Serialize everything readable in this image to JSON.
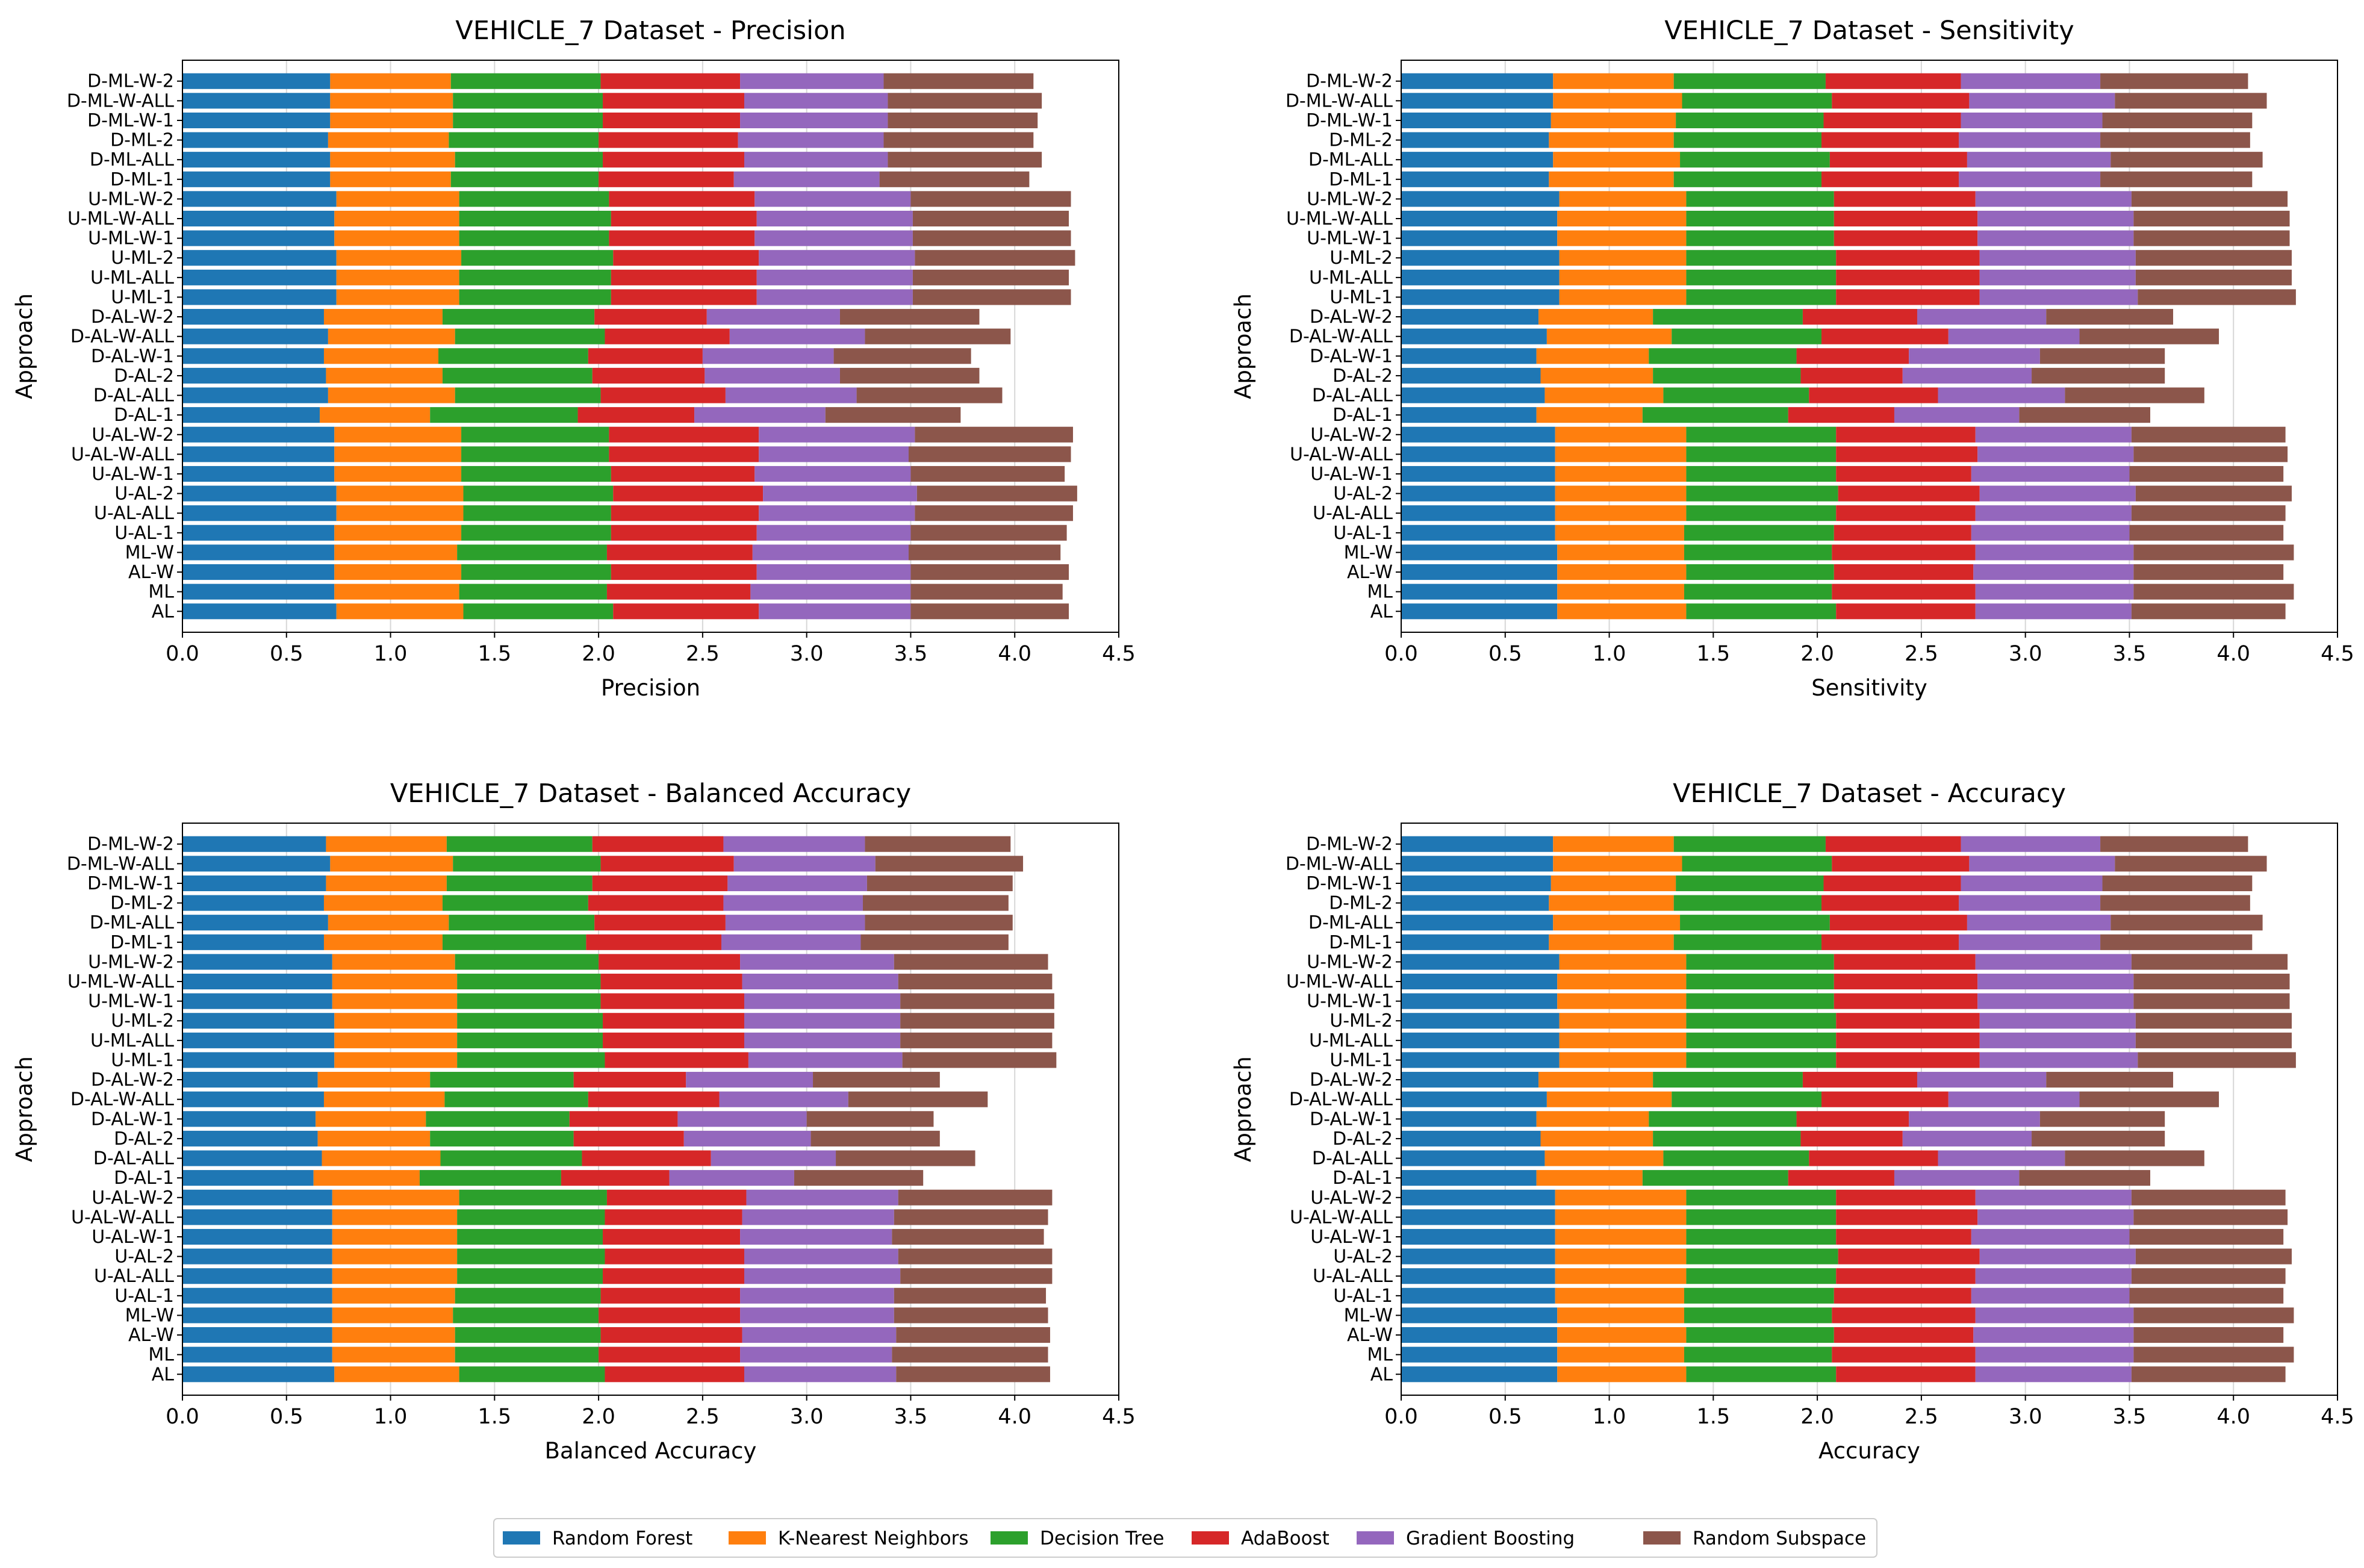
{
  "chart_data": [
    {
      "type": "bar",
      "orientation": "horizontal",
      "stacked": true,
      "title": "VEHICLE_7 Dataset - Precision",
      "xlabel": "Precision",
      "ylabel": "Approach",
      "xlim": [
        0,
        4.5
      ],
      "xticks": [
        "0.0",
        "0.5",
        "1.0",
        "1.5",
        "2.0",
        "2.5",
        "3.0",
        "3.5",
        "4.0",
        "4.5"
      ],
      "grid": "x",
      "categories": [
        "AL",
        "ML",
        "AL-W",
        "ML-W",
        "U-AL-1",
        "U-AL-ALL",
        "U-AL-2",
        "U-AL-W-1",
        "U-AL-W-ALL",
        "U-AL-W-2",
        "D-AL-1",
        "D-AL-ALL",
        "D-AL-2",
        "D-AL-W-1",
        "D-AL-W-ALL",
        "D-AL-W-2",
        "U-ML-1",
        "U-ML-ALL",
        "U-ML-2",
        "U-ML-W-1",
        "U-ML-W-ALL",
        "U-ML-W-2",
        "D-ML-1",
        "D-ML-ALL",
        "D-ML-2",
        "D-ML-W-1",
        "D-ML-W-ALL",
        "D-ML-W-2"
      ],
      "series": [
        {
          "name": "Random Forest",
          "values": [
            0.74,
            0.73,
            0.73,
            0.73,
            0.73,
            0.74,
            0.74,
            0.73,
            0.73,
            0.73,
            0.66,
            0.7,
            0.69,
            0.68,
            0.7,
            0.68,
            0.74,
            0.74,
            0.74,
            0.73,
            0.73,
            0.74,
            0.71,
            0.71,
            0.7,
            0.71,
            0.71,
            0.71
          ]
        },
        {
          "name": "K-Nearest Neighbors",
          "values": [
            0.61,
            0.6,
            0.61,
            0.59,
            0.61,
            0.61,
            0.61,
            0.61,
            0.61,
            0.61,
            0.53,
            0.61,
            0.56,
            0.55,
            0.61,
            0.57,
            0.59,
            0.59,
            0.6,
            0.6,
            0.6,
            0.59,
            0.58,
            0.6,
            0.58,
            0.59,
            0.59,
            0.58
          ]
        },
        {
          "name": "Decision Tree",
          "values": [
            0.72,
            0.71,
            0.72,
            0.72,
            0.72,
            0.71,
            0.72,
            0.72,
            0.71,
            0.71,
            0.71,
            0.7,
            0.72,
            0.72,
            0.72,
            0.73,
            0.73,
            0.73,
            0.73,
            0.72,
            0.73,
            0.72,
            0.71,
            0.71,
            0.72,
            0.72,
            0.72,
            0.72
          ]
        },
        {
          "name": "AdaBoost",
          "values": [
            0.7,
            0.69,
            0.7,
            0.7,
            0.7,
            0.71,
            0.72,
            0.69,
            0.72,
            0.72,
            0.56,
            0.6,
            0.54,
            0.55,
            0.6,
            0.54,
            0.7,
            0.7,
            0.7,
            0.7,
            0.7,
            0.7,
            0.65,
            0.68,
            0.67,
            0.66,
            0.68,
            0.67
          ]
        },
        {
          "name": "Gradient Boosting",
          "values": [
            0.73,
            0.77,
            0.74,
            0.75,
            0.74,
            0.75,
            0.74,
            0.75,
            0.72,
            0.75,
            0.63,
            0.63,
            0.65,
            0.63,
            0.65,
            0.64,
            0.75,
            0.75,
            0.75,
            0.76,
            0.75,
            0.75,
            0.7,
            0.69,
            0.7,
            0.71,
            0.69,
            0.69
          ]
        },
        {
          "name": "Random Subspace",
          "values": [
            0.76,
            0.73,
            0.76,
            0.73,
            0.75,
            0.76,
            0.77,
            0.74,
            0.78,
            0.76,
            0.65,
            0.7,
            0.67,
            0.66,
            0.7,
            0.67,
            0.76,
            0.75,
            0.77,
            0.76,
            0.75,
            0.77,
            0.72,
            0.74,
            0.72,
            0.72,
            0.74,
            0.72
          ]
        }
      ]
    },
    {
      "type": "bar",
      "orientation": "horizontal",
      "stacked": true,
      "title": "VEHICLE_7 Dataset - Sensitivity",
      "xlabel": "Sensitivity",
      "ylabel": "Approach",
      "xlim": [
        0,
        4.5
      ],
      "xticks": [
        "0.0",
        "0.5",
        "1.0",
        "1.5",
        "2.0",
        "2.5",
        "3.0",
        "3.5",
        "4.0",
        "4.5"
      ],
      "grid": "x",
      "categories": [
        "AL",
        "ML",
        "AL-W",
        "ML-W",
        "U-AL-1",
        "U-AL-ALL",
        "U-AL-2",
        "U-AL-W-1",
        "U-AL-W-ALL",
        "U-AL-W-2",
        "D-AL-1",
        "D-AL-ALL",
        "D-AL-2",
        "D-AL-W-1",
        "D-AL-W-ALL",
        "D-AL-W-2",
        "U-ML-1",
        "U-ML-ALL",
        "U-ML-2",
        "U-ML-W-1",
        "U-ML-W-ALL",
        "U-ML-W-2",
        "D-ML-1",
        "D-ML-ALL",
        "D-ML-2",
        "D-ML-W-1",
        "D-ML-W-ALL",
        "D-ML-W-2"
      ],
      "series": [
        {
          "name": "Random Forest",
          "values": [
            0.75,
            0.75,
            0.75,
            0.75,
            0.74,
            0.74,
            0.74,
            0.74,
            0.74,
            0.74,
            0.65,
            0.69,
            0.67,
            0.65,
            0.7,
            0.66,
            0.76,
            0.76,
            0.76,
            0.75,
            0.75,
            0.76,
            0.71,
            0.73,
            0.71,
            0.72,
            0.73,
            0.73
          ]
        },
        {
          "name": "K-Nearest Neighbors",
          "values": [
            0.62,
            0.61,
            0.62,
            0.61,
            0.62,
            0.63,
            0.63,
            0.63,
            0.63,
            0.63,
            0.51,
            0.57,
            0.54,
            0.54,
            0.6,
            0.55,
            0.61,
            0.61,
            0.61,
            0.62,
            0.62,
            0.61,
            0.6,
            0.61,
            0.6,
            0.6,
            0.62,
            0.58
          ]
        },
        {
          "name": "Decision Tree",
          "values": [
            0.72,
            0.71,
            0.71,
            0.71,
            0.72,
            0.72,
            0.73,
            0.72,
            0.72,
            0.72,
            0.7,
            0.7,
            0.71,
            0.71,
            0.72,
            0.72,
            0.72,
            0.72,
            0.72,
            0.71,
            0.71,
            0.71,
            0.71,
            0.72,
            0.71,
            0.71,
            0.72,
            0.73
          ]
        },
        {
          "name": "AdaBoost",
          "values": [
            0.67,
            0.69,
            0.67,
            0.69,
            0.66,
            0.67,
            0.68,
            0.65,
            0.68,
            0.67,
            0.51,
            0.62,
            0.49,
            0.54,
            0.61,
            0.55,
            0.69,
            0.69,
            0.69,
            0.69,
            0.69,
            0.68,
            0.66,
            0.66,
            0.66,
            0.66,
            0.66,
            0.65
          ]
        },
        {
          "name": "Gradient Boosting",
          "values": [
            0.75,
            0.76,
            0.77,
            0.76,
            0.76,
            0.75,
            0.75,
            0.76,
            0.75,
            0.75,
            0.6,
            0.61,
            0.62,
            0.63,
            0.63,
            0.62,
            0.76,
            0.75,
            0.75,
            0.75,
            0.75,
            0.75,
            0.68,
            0.69,
            0.68,
            0.68,
            0.7,
            0.67
          ]
        },
        {
          "name": "Random Subspace",
          "values": [
            0.74,
            0.77,
            0.72,
            0.77,
            0.74,
            0.74,
            0.75,
            0.74,
            0.74,
            0.74,
            0.63,
            0.67,
            0.64,
            0.6,
            0.67,
            0.61,
            0.76,
            0.75,
            0.75,
            0.75,
            0.75,
            0.75,
            0.73,
            0.73,
            0.72,
            0.72,
            0.73,
            0.71
          ]
        }
      ]
    },
    {
      "type": "bar",
      "orientation": "horizontal",
      "stacked": true,
      "title": "VEHICLE_7 Dataset - Balanced Accuracy",
      "xlabel": "Balanced Accuracy",
      "ylabel": "Approach",
      "xlim": [
        0,
        4.5
      ],
      "xticks": [
        "0.0",
        "0.5",
        "1.0",
        "1.5",
        "2.0",
        "2.5",
        "3.0",
        "3.5",
        "4.0",
        "4.5"
      ],
      "grid": "x",
      "categories": [
        "AL",
        "ML",
        "AL-W",
        "ML-W",
        "U-AL-1",
        "U-AL-ALL",
        "U-AL-2",
        "U-AL-W-1",
        "U-AL-W-ALL",
        "U-AL-W-2",
        "D-AL-1",
        "D-AL-ALL",
        "D-AL-2",
        "D-AL-W-1",
        "D-AL-W-ALL",
        "D-AL-W-2",
        "U-ML-1",
        "U-ML-ALL",
        "U-ML-2",
        "U-ML-W-1",
        "U-ML-W-ALL",
        "U-ML-W-2",
        "D-ML-1",
        "D-ML-ALL",
        "D-ML-2",
        "D-ML-W-1",
        "D-ML-W-ALL",
        "D-ML-W-2"
      ],
      "series": [
        {
          "name": "Random Forest",
          "values": [
            0.73,
            0.72,
            0.72,
            0.72,
            0.72,
            0.72,
            0.72,
            0.72,
            0.72,
            0.72,
            0.63,
            0.67,
            0.65,
            0.64,
            0.68,
            0.65,
            0.73,
            0.73,
            0.73,
            0.72,
            0.72,
            0.72,
            0.68,
            0.7,
            0.68,
            0.69,
            0.71,
            0.69
          ]
        },
        {
          "name": "K-Nearest Neighbors",
          "values": [
            0.6,
            0.59,
            0.59,
            0.58,
            0.59,
            0.6,
            0.6,
            0.6,
            0.6,
            0.61,
            0.51,
            0.57,
            0.54,
            0.53,
            0.58,
            0.54,
            0.59,
            0.59,
            0.59,
            0.6,
            0.6,
            0.59,
            0.57,
            0.58,
            0.57,
            0.58,
            0.59,
            0.58
          ]
        },
        {
          "name": "Decision Tree",
          "values": [
            0.7,
            0.69,
            0.7,
            0.7,
            0.7,
            0.7,
            0.71,
            0.7,
            0.71,
            0.71,
            0.68,
            0.68,
            0.69,
            0.69,
            0.69,
            0.69,
            0.71,
            0.7,
            0.7,
            0.69,
            0.69,
            0.69,
            0.69,
            0.7,
            0.7,
            0.7,
            0.71,
            0.7
          ]
        },
        {
          "name": "AdaBoost",
          "values": [
            0.67,
            0.68,
            0.68,
            0.68,
            0.67,
            0.68,
            0.67,
            0.66,
            0.66,
            0.67,
            0.52,
            0.62,
            0.53,
            0.52,
            0.63,
            0.54,
            0.69,
            0.68,
            0.68,
            0.69,
            0.68,
            0.68,
            0.65,
            0.63,
            0.65,
            0.65,
            0.64,
            0.63
          ]
        },
        {
          "name": "Gradient Boosting",
          "values": [
            0.73,
            0.73,
            0.74,
            0.74,
            0.74,
            0.75,
            0.74,
            0.73,
            0.73,
            0.73,
            0.6,
            0.6,
            0.61,
            0.62,
            0.62,
            0.61,
            0.74,
            0.75,
            0.75,
            0.75,
            0.75,
            0.74,
            0.67,
            0.67,
            0.67,
            0.67,
            0.68,
            0.68
          ]
        },
        {
          "name": "Random Subspace",
          "values": [
            0.74,
            0.75,
            0.74,
            0.74,
            0.73,
            0.73,
            0.74,
            0.73,
            0.74,
            0.74,
            0.62,
            0.67,
            0.62,
            0.61,
            0.67,
            0.61,
            0.74,
            0.73,
            0.74,
            0.74,
            0.74,
            0.74,
            0.71,
            0.71,
            0.7,
            0.7,
            0.71,
            0.7
          ]
        }
      ]
    },
    {
      "type": "bar",
      "orientation": "horizontal",
      "stacked": true,
      "title": "VEHICLE_7 Dataset - Accuracy",
      "xlabel": "Accuracy",
      "ylabel": "Approach",
      "xlim": [
        0,
        4.5
      ],
      "xticks": [
        "0.0",
        "0.5",
        "1.0",
        "1.5",
        "2.0",
        "2.5",
        "3.0",
        "3.5",
        "4.0",
        "4.5"
      ],
      "grid": "x",
      "categories": [
        "AL",
        "ML",
        "AL-W",
        "ML-W",
        "U-AL-1",
        "U-AL-ALL",
        "U-AL-2",
        "U-AL-W-1",
        "U-AL-W-ALL",
        "U-AL-W-2",
        "D-AL-1",
        "D-AL-ALL",
        "D-AL-2",
        "D-AL-W-1",
        "D-AL-W-ALL",
        "D-AL-W-2",
        "U-ML-1",
        "U-ML-ALL",
        "U-ML-2",
        "U-ML-W-1",
        "U-ML-W-ALL",
        "U-ML-W-2",
        "D-ML-1",
        "D-ML-ALL",
        "D-ML-2",
        "D-ML-W-1",
        "D-ML-W-ALL",
        "D-ML-W-2"
      ],
      "series": [
        {
          "name": "Random Forest",
          "values": [
            0.75,
            0.75,
            0.75,
            0.75,
            0.74,
            0.74,
            0.74,
            0.74,
            0.74,
            0.74,
            0.65,
            0.69,
            0.67,
            0.65,
            0.7,
            0.66,
            0.76,
            0.76,
            0.76,
            0.75,
            0.75,
            0.76,
            0.71,
            0.73,
            0.71,
            0.72,
            0.73,
            0.73
          ]
        },
        {
          "name": "K-Nearest Neighbors",
          "values": [
            0.62,
            0.61,
            0.62,
            0.61,
            0.62,
            0.63,
            0.63,
            0.63,
            0.63,
            0.63,
            0.51,
            0.57,
            0.54,
            0.54,
            0.6,
            0.55,
            0.61,
            0.61,
            0.61,
            0.62,
            0.62,
            0.61,
            0.6,
            0.61,
            0.6,
            0.6,
            0.62,
            0.58
          ]
        },
        {
          "name": "Decision Tree",
          "values": [
            0.72,
            0.71,
            0.71,
            0.71,
            0.72,
            0.72,
            0.73,
            0.72,
            0.72,
            0.72,
            0.7,
            0.7,
            0.71,
            0.71,
            0.72,
            0.72,
            0.72,
            0.72,
            0.72,
            0.71,
            0.71,
            0.71,
            0.71,
            0.72,
            0.71,
            0.71,
            0.72,
            0.73
          ]
        },
        {
          "name": "AdaBoost",
          "values": [
            0.67,
            0.69,
            0.67,
            0.69,
            0.66,
            0.67,
            0.68,
            0.65,
            0.68,
            0.67,
            0.51,
            0.62,
            0.49,
            0.54,
            0.61,
            0.55,
            0.69,
            0.69,
            0.69,
            0.69,
            0.69,
            0.68,
            0.66,
            0.66,
            0.66,
            0.66,
            0.66,
            0.65
          ]
        },
        {
          "name": "Gradient Boosting",
          "values": [
            0.75,
            0.76,
            0.77,
            0.76,
            0.76,
            0.75,
            0.75,
            0.76,
            0.75,
            0.75,
            0.6,
            0.61,
            0.62,
            0.63,
            0.63,
            0.62,
            0.76,
            0.75,
            0.75,
            0.75,
            0.75,
            0.75,
            0.68,
            0.69,
            0.68,
            0.68,
            0.7,
            0.67
          ]
        },
        {
          "name": "Random Subspace",
          "values": [
            0.74,
            0.77,
            0.72,
            0.77,
            0.74,
            0.74,
            0.75,
            0.74,
            0.74,
            0.74,
            0.63,
            0.67,
            0.64,
            0.6,
            0.67,
            0.61,
            0.76,
            0.75,
            0.75,
            0.75,
            0.75,
            0.75,
            0.73,
            0.73,
            0.72,
            0.72,
            0.73,
            0.71
          ]
        }
      ]
    }
  ],
  "legend": {
    "placement": "bottom-center",
    "entries": [
      "Random Forest",
      "K-Nearest Neighbors",
      "Decision Tree",
      "AdaBoost",
      "Gradient Boosting",
      "Random Subspace"
    ]
  },
  "colors": [
    "#1f77b4",
    "#ff7f0e",
    "#2ca02c",
    "#d62728",
    "#9467bd",
    "#8c564b"
  ]
}
